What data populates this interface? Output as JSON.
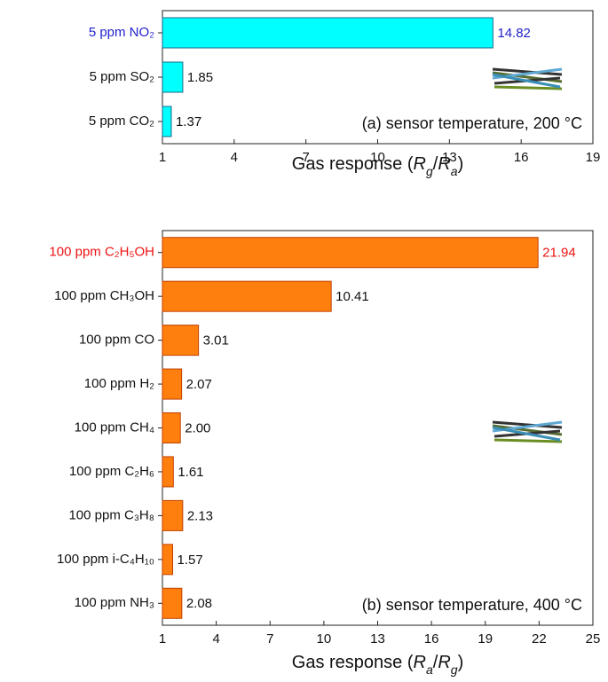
{
  "chart_data": [
    {
      "type": "hbar",
      "categories": [
        "5 ppm NO₂",
        "5 ppm SO₂",
        "5 ppm CO₂"
      ],
      "values": [
        14.82,
        1.85,
        1.37
      ],
      "value_labels": [
        "14.82",
        "1.85",
        "1.37"
      ],
      "color": "#00ffff",
      "edge_color": "#1a6a8a",
      "highlight": {
        "index": 0,
        "color": "#2222cc"
      },
      "xlim": [
        1,
        19
      ],
      "xticks": [
        1,
        4,
        7,
        10,
        13,
        16,
        19
      ],
      "xlabel_parts": [
        {
          "text": "Gas response (",
          "style": "normal"
        },
        {
          "text": "R",
          "style": "italic"
        },
        {
          "text": "g",
          "style": "italic-sub"
        },
        {
          "text": "/",
          "style": "normal"
        },
        {
          "text": "R",
          "style": "italic"
        },
        {
          "text": "a",
          "style": "italic-sub"
        },
        {
          "text": ")",
          "style": "normal"
        }
      ],
      "annotation": "(a) sensor temperature, 200 °C"
    },
    {
      "type": "hbar",
      "categories": [
        "100 ppm C₂H₅OH",
        "100 ppm CH₃OH",
        "100 ppm CO",
        "100 ppm H₂",
        "100 ppm CH₄",
        "100 ppm C₂H₆",
        "100 ppm C₃H₈",
        "100 ppm i-C₄H₁₀",
        "100 ppm NH₃"
      ],
      "values": [
        21.94,
        10.41,
        3.01,
        2.07,
        2.0,
        1.61,
        2.13,
        1.57,
        2.08
      ],
      "value_labels": [
        "21.94",
        "10.41",
        "3.01",
        "2.07",
        "2.00",
        "1.61",
        "2.13",
        "1.57",
        "2.08"
      ],
      "color": "#ff7f0e",
      "edge_color": "#c04000",
      "highlight": {
        "index": 0,
        "color": "#ee1111"
      },
      "xlim": [
        1,
        25
      ],
      "xticks": [
        1,
        4,
        7,
        10,
        13,
        16,
        19,
        22,
        25
      ],
      "xlabel_parts": [
        {
          "text": "Gas response (",
          "style": "normal"
        },
        {
          "text": "R",
          "style": "italic"
        },
        {
          "text": "a",
          "style": "italic-sub"
        },
        {
          "text": "/",
          "style": "normal"
        },
        {
          "text": "R",
          "style": "italic"
        },
        {
          "text": "g",
          "style": "italic-sub"
        },
        {
          "text": ")",
          "style": "normal"
        }
      ],
      "annotation": "(b) sensor temperature, 400 °C"
    }
  ]
}
